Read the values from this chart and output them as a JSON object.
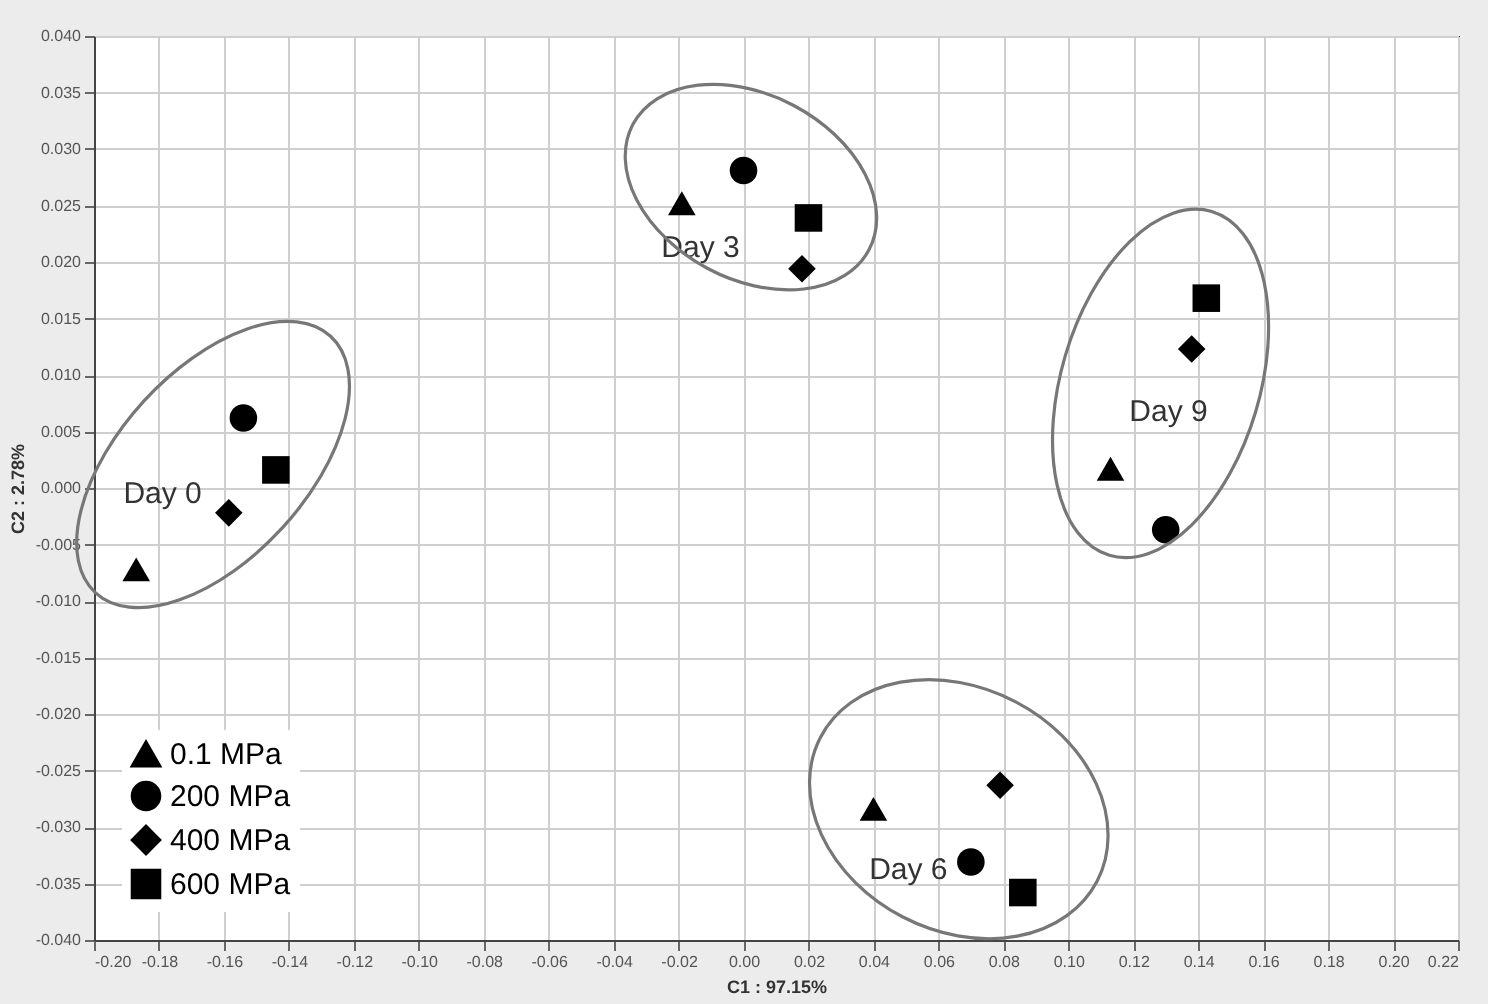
{
  "chart_data": {
    "type": "scatter",
    "xlabel": "C1 : 97.15%",
    "ylabel": "C2 : 2.78%",
    "xlim": [
      -0.2,
      0.22
    ],
    "ylim": [
      -0.04,
      0.04
    ],
    "xticks": [
      {
        "value": -0.2,
        "label": "-0.20"
      },
      {
        "value": -0.18,
        "label": "-0.18"
      },
      {
        "value": -0.16,
        "label": "-0.16"
      },
      {
        "value": -0.14,
        "label": "-0.14"
      },
      {
        "value": -0.12,
        "label": "-0.12"
      },
      {
        "value": -0.1,
        "label": "-0.10"
      },
      {
        "value": -0.08,
        "label": "-0.08"
      },
      {
        "value": -0.06,
        "label": "-0.06"
      },
      {
        "value": -0.04,
        "label": "-0.04"
      },
      {
        "value": -0.02,
        "label": "-0.02"
      },
      {
        "value": 0,
        "label": "0.00"
      },
      {
        "value": 0.02,
        "label": "0.02"
      },
      {
        "value": 0.04,
        "label": "0.04"
      },
      {
        "value": 0.06,
        "label": "0.06"
      },
      {
        "value": 0.08,
        "label": "0.08"
      },
      {
        "value": 0.1,
        "label": "0.10"
      },
      {
        "value": 0.12,
        "label": "0.12"
      },
      {
        "value": 0.14,
        "label": "0.14"
      },
      {
        "value": 0.16,
        "label": "0.16"
      },
      {
        "value": 0.18,
        "label": "0.18"
      },
      {
        "value": 0.2,
        "label": "0.20"
      },
      {
        "value": 0.22,
        "label": "0.22"
      }
    ],
    "yticks": [
      {
        "value": -0.04,
        "label": "-0.040"
      },
      {
        "value": -0.035,
        "label": "-0.035"
      },
      {
        "value": -0.03,
        "label": "-0.030"
      },
      {
        "value": -0.025,
        "label": "-0.025"
      },
      {
        "value": -0.02,
        "label": "-0.020"
      },
      {
        "value": -0.015,
        "label": "-0.015"
      },
      {
        "value": -0.01,
        "label": "-0.010"
      },
      {
        "value": -0.005,
        "label": "-0.005"
      },
      {
        "value": 0,
        "label": "0.000"
      },
      {
        "value": 0.005,
        "label": "0.005"
      },
      {
        "value": 0.01,
        "label": "0.010"
      },
      {
        "value": 0.015,
        "label": "0.015"
      },
      {
        "value": 0.02,
        "label": "0.020"
      },
      {
        "value": 0.025,
        "label": "0.025"
      },
      {
        "value": 0.03,
        "label": "0.030"
      },
      {
        "value": 0.035,
        "label": "0.035"
      },
      {
        "value": 0.04,
        "label": "0.040"
      }
    ],
    "grid": true,
    "legend": "bottom left",
    "series": [
      {
        "name": "0.1 MPa",
        "color": "#000000",
        "marker": "triangle",
        "x": [
          -0.187,
          -0.019,
          0.04,
          0.113
        ],
        "values": [
          -0.0072,
          0.0252,
          -0.0284,
          0.0017
        ]
      },
      {
        "name": "200 MPa",
        "color": "#000000",
        "marker": "circle",
        "x": [
          -0.154,
          0.0,
          0.07,
          0.13
        ],
        "values": [
          0.0062,
          0.0281,
          -0.0331,
          -0.0037
        ]
      },
      {
        "name": "400 MPa",
        "color": "#000000",
        "marker": "diamond",
        "x": [
          -0.1585,
          0.018,
          0.079,
          0.138
        ],
        "values": [
          -0.0022,
          0.0194,
          -0.0263,
          0.0123
        ]
      },
      {
        "name": "600 MPa",
        "color": "#000000",
        "marker": "square",
        "x": [
          -0.144,
          0.02,
          0.086,
          0.1425
        ],
        "values": [
          0.0016,
          0.0239,
          -0.0358,
          0.0168
        ]
      }
    ],
    "annotations": [
      "Day 0",
      "Day 3",
      "Day 6",
      "Day 9"
    ]
  }
}
